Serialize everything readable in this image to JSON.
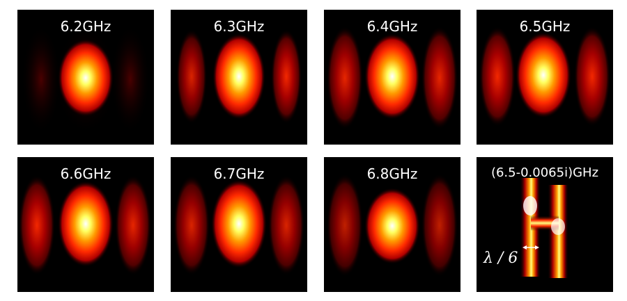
{
  "figure": {
    "panels": [
      {
        "label": "6.2GHz",
        "mode": "centered",
        "side_strength": 0.15
      },
      {
        "label": "6.3GHz",
        "mode": "centered",
        "side_strength": 0.7
      },
      {
        "label": "6.4GHz",
        "mode": "centered",
        "side_strength": 0.75
      },
      {
        "label": "6.5GHz",
        "mode": "centered",
        "side_strength": 0.8
      },
      {
        "label": "6.6GHz",
        "mode": "centered",
        "side_strength": 0.75
      },
      {
        "label": "6.7GHz",
        "mode": "centered",
        "side_strength": 0.65
      },
      {
        "label": "6.8GHz",
        "mode": "centered",
        "side_strength": 0.55
      },
      {
        "label": "(6.5-0.0065i)GHz",
        "mode": "H-shape",
        "annotation": "λ / 6"
      }
    ],
    "colormap": [
      "#000000",
      "#5a0000",
      "#b00000",
      "#ff2a00",
      "#ff9a00",
      "#ffff60",
      "#ffffff"
    ]
  }
}
